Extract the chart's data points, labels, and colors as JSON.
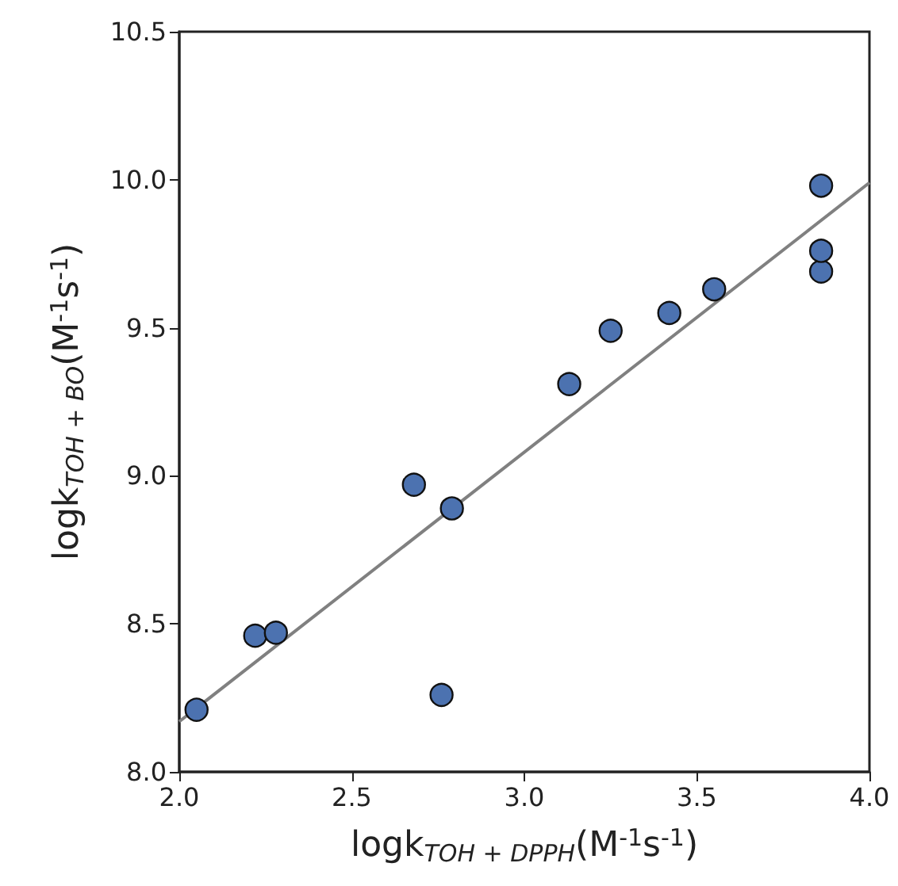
{
  "chart_data": {
    "type": "scatter",
    "xlabel": "logk$_{TOH + DPPH}$(M$^{-1}$s$^{-1}$)",
    "ylabel": "logk$_{TOH + BO}$(M$^{-1}$s$^{-1}$)",
    "series": [
      {
        "color": "#4c72b0",
        "x": [
          2.05,
          2.22,
          2.28,
          2.68,
          2.79,
          2.76,
          3.13,
          3.25,
          3.42,
          3.55,
          3.86,
          3.86,
          3.86
        ],
        "values": [
          8.21,
          8.46,
          8.47,
          8.97,
          8.89,
          8.26,
          9.31,
          9.49,
          9.55,
          9.63,
          9.69,
          9.76,
          9.98
        ]
      },
      {
        "type": "line",
        "marker": "none",
        "color": "#808080",
        "x": [
          2.0,
          4.0
        ],
        "values": [
          8.17,
          9.99
        ]
      }
    ],
    "marker": "circle",
    "xlim": [
      2.0,
      4.0
    ],
    "xticks": [
      {
        "value": 2,
        "label": "2.0"
      },
      2.5,
      {
        "value": 3,
        "label": "3.0"
      },
      3.5,
      {
        "value": 4,
        "label": "4.0"
      }
    ],
    "ylim": [
      8.0,
      10.5
    ],
    "yticks": [
      {
        "value": 8,
        "label": "8.0"
      },
      8.5,
      {
        "value": 9,
        "label": "9.0"
      },
      9.5,
      {
        "value": 10,
        "label": "10.0"
      },
      10.5
    ],
    "grid": false
  }
}
